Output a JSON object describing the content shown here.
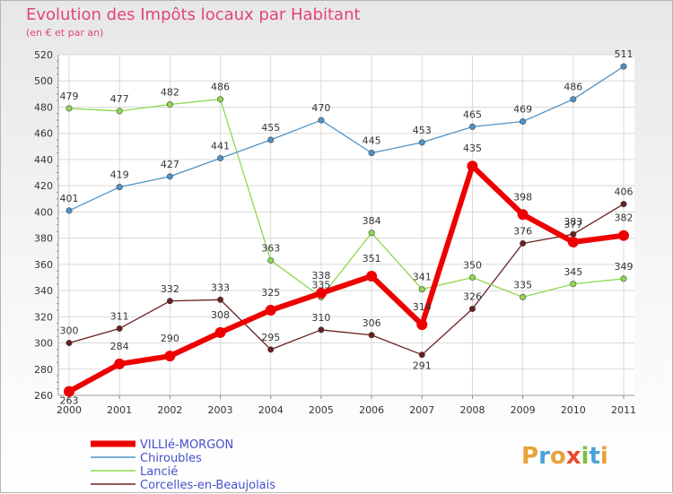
{
  "chart_data": {
    "type": "line",
    "title": "Evolution des Impôts locaux par Habitant",
    "subtitle": "(en € et par an)",
    "xlabel": "",
    "ylabel": "",
    "x": [
      "2000",
      "2001",
      "2002",
      "2003",
      "2004",
      "2005",
      "2006",
      "2007",
      "2008",
      "2009",
      "2010",
      "2011"
    ],
    "ylim": [
      260,
      520
    ],
    "yticks": [
      "260",
      "280",
      "300",
      "320",
      "340",
      "360",
      "380",
      "400",
      "420",
      "440",
      "460",
      "480",
      "500",
      "520"
    ],
    "grid": true,
    "legend_position": "bottom-left",
    "series": [
      {
        "name": "VILLIé-MORGON",
        "color": "#ee0000",
        "values": [
          263,
          284,
          290,
          308,
          325,
          338,
          351,
          314,
          435,
          398,
          377,
          382
        ]
      },
      {
        "name": "Chiroubles",
        "color": "#4f93c7",
        "values": [
          401,
          419,
          427,
          441,
          455,
          470,
          445,
          453,
          465,
          469,
          486,
          511
        ]
      },
      {
        "name": "Lancié",
        "color": "#8ed84e",
        "values": [
          479,
          477,
          482,
          486,
          363,
          335,
          384,
          341,
          350,
          335,
          345,
          349
        ]
      },
      {
        "name": "Corcelles-en-Beaujolais",
        "color": "#6b1f1f",
        "values": [
          300,
          311,
          332,
          333,
          295,
          310,
          306,
          291,
          326,
          376,
          383,
          406
        ]
      }
    ]
  },
  "logo": {
    "text": "Proxiti"
  }
}
